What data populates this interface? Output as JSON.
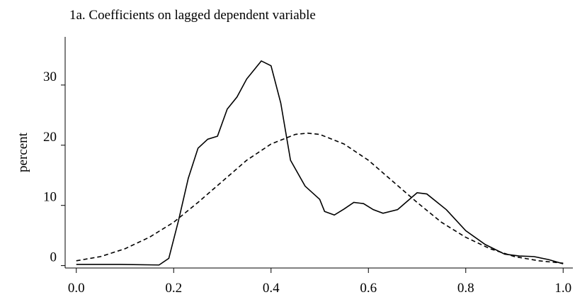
{
  "chart_data": {
    "type": "line",
    "title": "1a. Coefficients on lagged dependent variable",
    "y_label": "percent",
    "series": [
      {
        "color": "#000000",
        "dash": "solid",
        "x": [
          0.0,
          0.09,
          0.17,
          0.19,
          0.21,
          0.23,
          0.25,
          0.27,
          0.29,
          0.31,
          0.33,
          0.35,
          0.38,
          0.4,
          0.42,
          0.44,
          0.47,
          0.5,
          0.51,
          0.53,
          0.55,
          0.57,
          0.59,
          0.61,
          0.63,
          0.66,
          0.7,
          0.72,
          0.76,
          0.8,
          0.84,
          0.88,
          0.91,
          0.94,
          0.97,
          1.0
        ],
        "values": [
          0.2,
          0.2,
          0.1,
          1.2,
          7.5,
          14.5,
          19.5,
          21,
          21.5,
          26,
          28,
          31,
          34,
          33.2,
          27,
          17.5,
          13.2,
          11,
          9,
          8.4,
          9.4,
          10.5,
          10.3,
          9.3,
          8.7,
          9.3,
          12.1,
          11.9,
          9.3,
          5.8,
          3.5,
          1.9,
          1.6,
          1.5,
          1.0,
          0.3
        ]
      },
      {
        "color": "#000000",
        "dash": "dashed",
        "x": [
          0.0,
          0.05,
          0.1,
          0.15,
          0.2,
          0.25,
          0.3,
          0.35,
          0.4,
          0.45,
          0.475,
          0.5,
          0.55,
          0.6,
          0.65,
          0.7,
          0.75,
          0.8,
          0.85,
          0.9,
          0.95,
          1.0
        ],
        "values": [
          0.8,
          1.5,
          2.8,
          4.7,
          7.2,
          10.5,
          14.0,
          17.5,
          20.2,
          21.8,
          22,
          21.8,
          20.2,
          17.5,
          14.0,
          10.5,
          7.2,
          4.7,
          2.8,
          1.5,
          0.8,
          0.4
        ]
      }
    ],
    "xlim": [
      -0.02,
      1.02
    ],
    "xticks": [
      {
        "value": 0,
        "label": "0.0"
      },
      {
        "value": 0.2,
        "label": "0.2"
      },
      {
        "value": 0.4,
        "label": "0.4"
      },
      {
        "value": 0.6,
        "label": "0.6"
      },
      {
        "value": 0.8,
        "label": "0.8"
      },
      {
        "value": 1,
        "label": "1.0"
      }
    ],
    "ylim": [
      -0.4,
      38
    ],
    "yticks": [
      0,
      10,
      20,
      30
    ]
  }
}
